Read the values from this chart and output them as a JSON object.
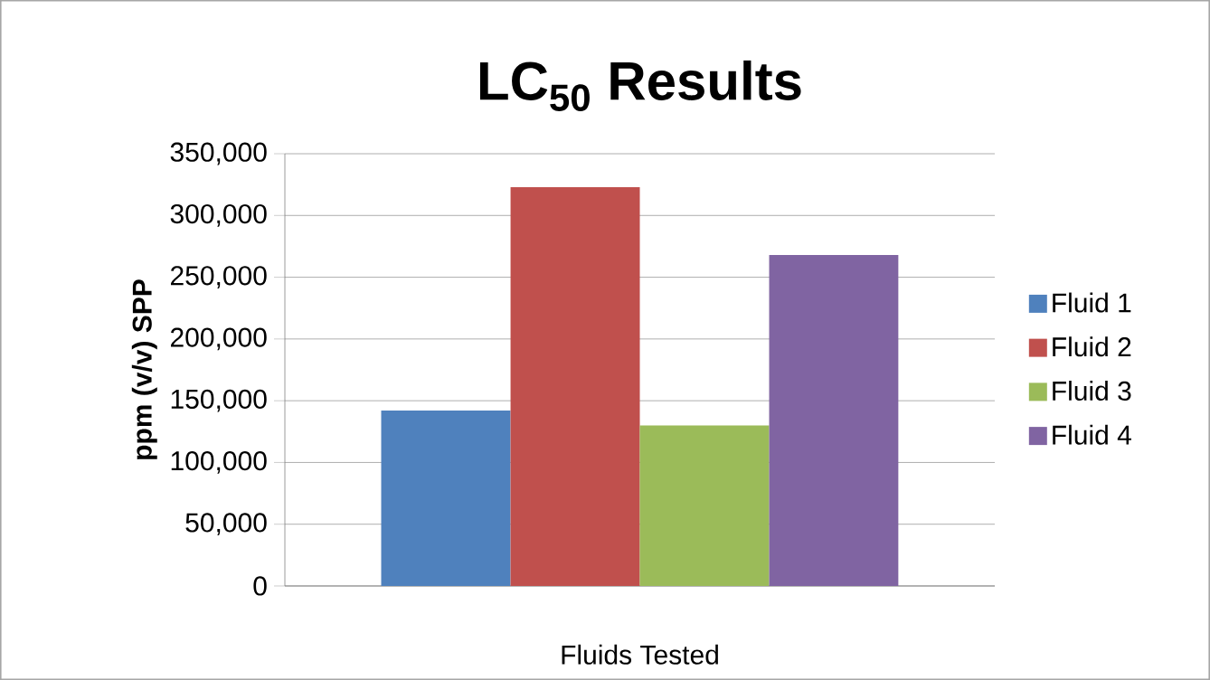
{
  "chart_data": {
    "type": "bar",
    "title": "LC$_{50}$ Results",
    "xlabel": "Fluids Tested",
    "ylabel": "ppm (v/v) SPP",
    "categories": [
      null
    ],
    "series": [
      {
        "name": "Fluid 1",
        "color": "#4f81bd",
        "values": [
          142000
        ]
      },
      {
        "name": "Fluid 2",
        "color": "#c0504d",
        "values": [
          323000
        ]
      },
      {
        "name": "Fluid 3",
        "color": "#9bbb59",
        "values": [
          130000
        ]
      },
      {
        "name": "Fluid 4",
        "color": "#8064a2",
        "values": [
          268000
        ]
      }
    ],
    "ylim": [
      0,
      350000
    ],
    "yticks": [
      {
        "value": 0,
        "label": "0"
      },
      {
        "value": 50000,
        "label": "50,000"
      },
      {
        "value": 100000,
        "label": "100,000"
      },
      {
        "value": 150000,
        "label": "150,000"
      },
      {
        "value": 200000,
        "label": "200,000"
      },
      {
        "value": 250000,
        "label": "250,000"
      },
      {
        "value": 300000,
        "label": "300,000"
      },
      {
        "value": 350000,
        "label": "350,000"
      }
    ],
    "grid": "y",
    "legend": "right"
  }
}
